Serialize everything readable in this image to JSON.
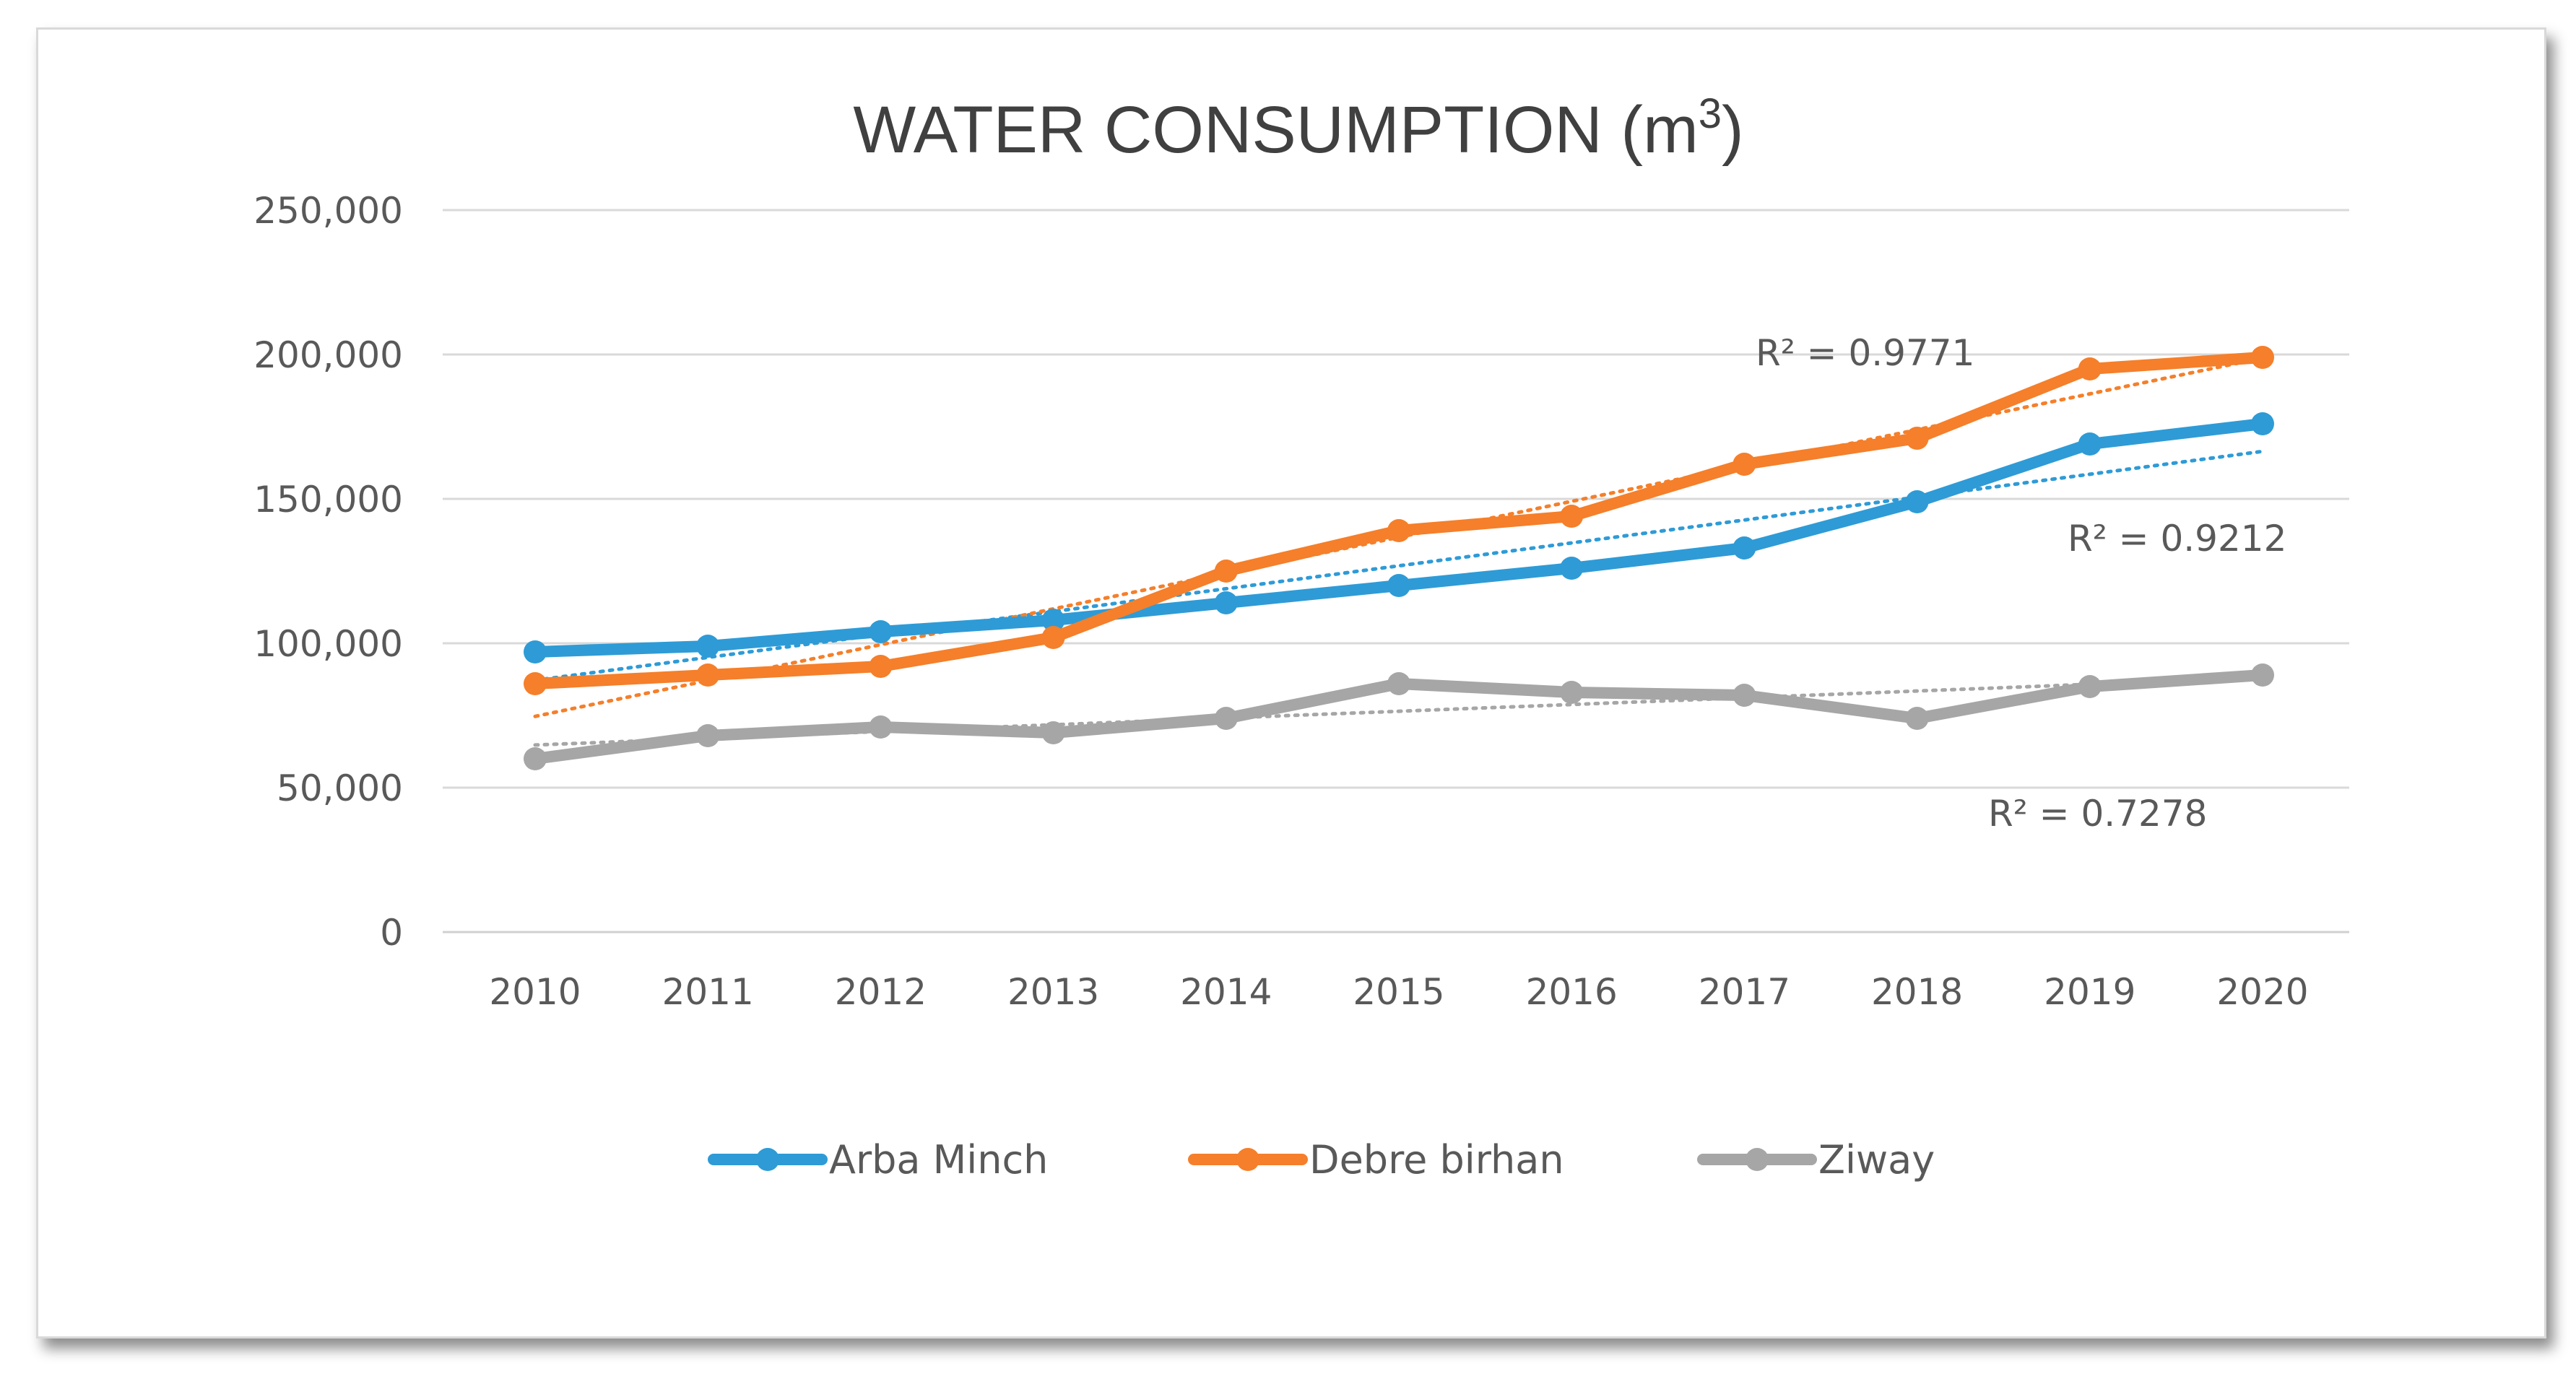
{
  "chart_data": {
    "type": "line",
    "title_main": "WATER CONSUMPTION (m",
    "title_sup": "3",
    "title_end": ")",
    "categories": [
      "2010",
      "2011",
      "2012",
      "2013",
      "2014",
      "2015",
      "2016",
      "2017",
      "2018",
      "2019",
      "2020"
    ],
    "ylim": [
      0,
      250000
    ],
    "yticks": [
      0,
      50000,
      100000,
      150000,
      200000,
      250000
    ],
    "ytick_labels": [
      "0",
      "50,000",
      "100,000",
      "150,000",
      "200,000",
      "250,000"
    ],
    "grid": true,
    "legend_position": "bottom",
    "series": [
      {
        "name": "Arba Minch",
        "color": "#2e9bd6",
        "values": [
          97000,
          99000,
          104000,
          108000,
          114000,
          120000,
          126000,
          133000,
          149000,
          169000,
          176000
        ],
        "r2_label": "R² = 0.9212"
      },
      {
        "name": "Debre birhan",
        "color": "#f57f2a",
        "values": [
          86000,
          89000,
          92000,
          102000,
          125000,
          139000,
          144000,
          162000,
          171000,
          195000,
          199000
        ],
        "r2_label": "R² = 0.9771"
      },
      {
        "name": "Ziway",
        "color": "#a6a6a6",
        "values": [
          60000,
          68000,
          71000,
          69000,
          74000,
          86000,
          83000,
          82000,
          74000,
          85000,
          89000
        ],
        "r2_label": "R² = 0.7278"
      }
    ]
  }
}
